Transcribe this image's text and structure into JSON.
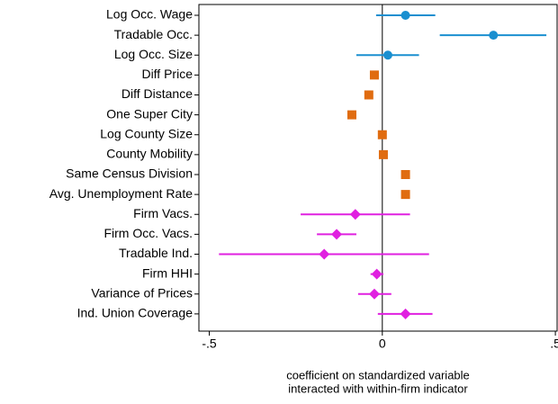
{
  "chart_data": {
    "type": "coefplot",
    "categories": [
      "Log Occ. Wage",
      "Tradable Occ.",
      "Log Occ. Size",
      "Diff Price",
      "Diff Distance",
      "One Super City",
      "Log County Size",
      "County Mobility",
      "Same Census Division",
      "Avg. Unemployment Rate",
      "Firm Vacs.",
      "Firm Occ. Vacs.",
      "Tradable Ind.",
      "Firm HHI",
      "Variance of Prices",
      "Ind. Union Coverage"
    ],
    "series": [
      {
        "color": "#1a8fd0",
        "marker": "circle",
        "values": [
          0.067,
          0.321,
          0.016,
          null,
          null,
          null,
          null,
          null,
          null,
          null,
          null,
          null,
          null,
          null,
          null,
          null
        ],
        "lower": [
          -0.018,
          0.166,
          -0.075,
          null,
          null,
          null,
          null,
          null,
          null,
          null,
          null,
          null,
          null,
          null,
          null,
          null
        ],
        "upper": [
          0.153,
          0.474,
          0.106,
          null,
          null,
          null,
          null,
          null,
          null,
          null,
          null,
          null,
          null,
          null,
          null,
          null
        ]
      },
      {
        "color": "#e06c10",
        "marker": "square",
        "values": [
          null,
          null,
          null,
          -0.023,
          -0.039,
          -0.088,
          0.0,
          0.003,
          0.067,
          0.067,
          null,
          null,
          null,
          null,
          null,
          null
        ]
      },
      {
        "color": "#e020e0",
        "marker": "diamond",
        "values": [
          null,
          null,
          null,
          null,
          null,
          null,
          null,
          null,
          null,
          null,
          -0.078,
          -0.132,
          -0.168,
          -0.016,
          -0.023,
          0.067
        ],
        "lower": [
          null,
          null,
          null,
          null,
          null,
          null,
          null,
          null,
          null,
          null,
          -0.236,
          -0.189,
          -0.472,
          -0.034,
          -0.07,
          -0.013
        ],
        "upper": [
          null,
          null,
          null,
          null,
          null,
          null,
          null,
          null,
          null,
          null,
          0.08,
          -0.075,
          0.135,
          0.003,
          0.026,
          0.145
        ]
      }
    ],
    "xlim": [
      -0.53,
      0.505
    ],
    "xticks": [
      {
        "value": -0.5,
        "label": "-.5"
      },
      {
        "value": 0,
        "label": "0"
      },
      {
        "value": 0.5,
        "label": ".5"
      }
    ],
    "xlabel": [
      "coefficient on standardized variable",
      "interacted with within-firm indicator"
    ]
  }
}
